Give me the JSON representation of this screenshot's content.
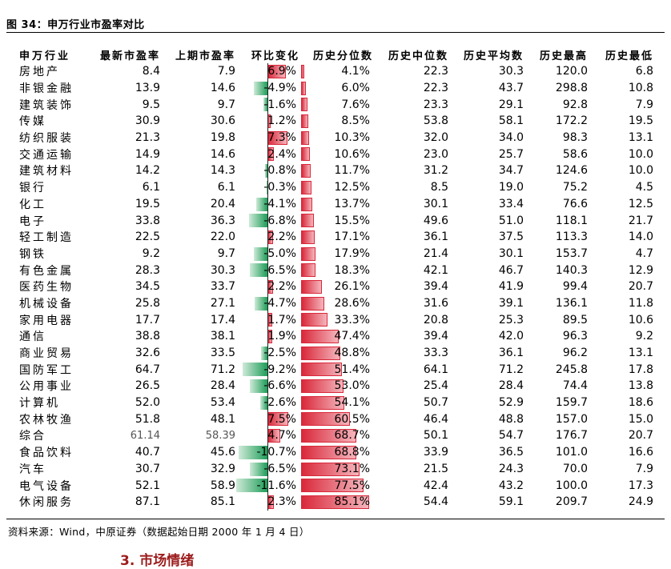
{
  "figure": {
    "title": "图 34：申万行业市盈率对比",
    "source": "资料来源：Wind，中原证券（数据起始日期 2000 年 1 月 4 日）",
    "next_heading": "3. 市场情绪"
  },
  "colors": {
    "positive": "#d9283a",
    "negative": "#1e9c58"
  },
  "table": {
    "headers": [
      "申万行业",
      "最新市盈率",
      "上期市盈率",
      "环比变化",
      "历史分位数",
      "历史中位数",
      "历史平均数",
      "历史最高",
      "历史最低"
    ],
    "rows": [
      {
        "name": "房地产",
        "latest": "8.4",
        "prev": "7.9",
        "change": "6.9%",
        "change_value": 6.9,
        "pct": "4.1%",
        "pct_value": 4.1,
        "median": "22.3",
        "mean": "30.3",
        "high": "120.0",
        "low": "6.8"
      },
      {
        "name": "非银金融",
        "latest": "13.9",
        "prev": "14.6",
        "change": "-4.9%",
        "change_value": -4.9,
        "pct": "6.0%",
        "pct_value": 6.0,
        "median": "22.3",
        "mean": "43.7",
        "high": "298.8",
        "low": "10.8"
      },
      {
        "name": "建筑装饰",
        "latest": "9.5",
        "prev": "9.7",
        "change": "-1.6%",
        "change_value": -1.6,
        "pct": "7.6%",
        "pct_value": 7.6,
        "median": "23.3",
        "mean": "29.1",
        "high": "92.8",
        "low": "7.9"
      },
      {
        "name": "传媒",
        "latest": "30.9",
        "prev": "30.6",
        "change": "1.2%",
        "change_value": 1.2,
        "pct": "8.5%",
        "pct_value": 8.5,
        "median": "53.8",
        "mean": "58.1",
        "high": "172.2",
        "low": "19.5"
      },
      {
        "name": "纺织服装",
        "latest": "21.3",
        "prev": "19.8",
        "change": "7.3%",
        "change_value": 7.3,
        "pct": "10.3%",
        "pct_value": 10.3,
        "median": "32.0",
        "mean": "34.0",
        "high": "98.3",
        "low": "13.1"
      },
      {
        "name": "交通运输",
        "latest": "14.9",
        "prev": "14.6",
        "change": "2.4%",
        "change_value": 2.4,
        "pct": "10.6%",
        "pct_value": 10.6,
        "median": "23.0",
        "mean": "25.7",
        "high": "58.6",
        "low": "10.0"
      },
      {
        "name": "建筑材料",
        "latest": "14.2",
        "prev": "14.3",
        "change": "-0.8%",
        "change_value": -0.8,
        "pct": "11.7%",
        "pct_value": 11.7,
        "median": "31.2",
        "mean": "34.7",
        "high": "124.6",
        "low": "10.0"
      },
      {
        "name": "银行",
        "latest": "6.1",
        "prev": "6.1",
        "change": "-0.3%",
        "change_value": -0.3,
        "pct": "12.5%",
        "pct_value": 12.5,
        "median": "8.5",
        "mean": "19.0",
        "high": "75.2",
        "low": "4.5"
      },
      {
        "name": "化工",
        "latest": "19.5",
        "prev": "20.4",
        "change": "-4.1%",
        "change_value": -4.1,
        "pct": "13.7%",
        "pct_value": 13.7,
        "median": "30.1",
        "mean": "33.4",
        "high": "76.6",
        "low": "12.5"
      },
      {
        "name": "电子",
        "latest": "33.8",
        "prev": "36.3",
        "change": "-6.8%",
        "change_value": -6.8,
        "pct": "15.5%",
        "pct_value": 15.5,
        "median": "49.6",
        "mean": "51.0",
        "high": "118.1",
        "low": "21.7"
      },
      {
        "name": "轻工制造",
        "latest": "22.5",
        "prev": "22.0",
        "change": "2.2%",
        "change_value": 2.2,
        "pct": "17.1%",
        "pct_value": 17.1,
        "median": "36.1",
        "mean": "37.5",
        "high": "113.3",
        "low": "14.0"
      },
      {
        "name": "钢铁",
        "latest": "9.2",
        "prev": "9.7",
        "change": "-5.0%",
        "change_value": -5.0,
        "pct": "17.9%",
        "pct_value": 17.9,
        "median": "21.4",
        "mean": "30.1",
        "high": "153.7",
        "low": "4.7"
      },
      {
        "name": "有色金属",
        "latest": "28.3",
        "prev": "30.3",
        "change": "-6.5%",
        "change_value": -6.5,
        "pct": "18.3%",
        "pct_value": 18.3,
        "median": "42.1",
        "mean": "46.7",
        "high": "140.3",
        "low": "12.9"
      },
      {
        "name": "医药生物",
        "latest": "34.5",
        "prev": "33.7",
        "change": "2.2%",
        "change_value": 2.2,
        "pct": "26.1%",
        "pct_value": 26.1,
        "median": "39.4",
        "mean": "41.9",
        "high": "99.4",
        "low": "20.7"
      },
      {
        "name": "机械设备",
        "latest": "25.8",
        "prev": "27.1",
        "change": "-4.7%",
        "change_value": -4.7,
        "pct": "28.6%",
        "pct_value": 28.6,
        "median": "31.6",
        "mean": "39.1",
        "high": "136.1",
        "low": "11.8"
      },
      {
        "name": "家用电器",
        "latest": "17.7",
        "prev": "17.4",
        "change": "1.7%",
        "change_value": 1.7,
        "pct": "33.3%",
        "pct_value": 33.3,
        "median": "20.8",
        "mean": "25.3",
        "high": "89.5",
        "low": "10.6"
      },
      {
        "name": "通信",
        "latest": "38.8",
        "prev": "38.1",
        "change": "1.9%",
        "change_value": 1.9,
        "pct": "47.4%",
        "pct_value": 47.4,
        "median": "39.4",
        "mean": "42.0",
        "high": "96.3",
        "low": "9.2"
      },
      {
        "name": "商业贸易",
        "latest": "32.6",
        "prev": "33.5",
        "change": "-2.5%",
        "change_value": -2.5,
        "pct": "48.8%",
        "pct_value": 48.8,
        "median": "33.3",
        "mean": "36.1",
        "high": "96.2",
        "low": "13.1"
      },
      {
        "name": "国防军工",
        "latest": "64.7",
        "prev": "71.2",
        "change": "-9.2%",
        "change_value": -9.2,
        "pct": "51.4%",
        "pct_value": 51.4,
        "median": "64.1",
        "mean": "71.2",
        "high": "245.8",
        "low": "17.8"
      },
      {
        "name": "公用事业",
        "latest": "26.5",
        "prev": "28.4",
        "change": "-6.6%",
        "change_value": -6.6,
        "pct": "53.0%",
        "pct_value": 53.0,
        "median": "25.4",
        "mean": "28.4",
        "high": "74.4",
        "low": "13.8"
      },
      {
        "name": "计算机",
        "latest": "52.0",
        "prev": "53.4",
        "change": "-2.6%",
        "change_value": -2.6,
        "pct": "54.1%",
        "pct_value": 54.1,
        "median": "50.7",
        "mean": "52.9",
        "high": "159.7",
        "low": "18.6"
      },
      {
        "name": "农林牧渔",
        "latest": "51.8",
        "prev": "48.1",
        "change": "7.5%",
        "change_value": 7.5,
        "pct": "60.5%",
        "pct_value": 60.5,
        "median": "46.4",
        "mean": "48.8",
        "high": "157.0",
        "low": "15.0"
      },
      {
        "name": "综合",
        "latest": "61.14",
        "prev": "58.39",
        "change": "4.7%",
        "change_value": 4.7,
        "pct": "68.7%",
        "pct_value": 68.7,
        "median": "50.1",
        "mean": "54.7",
        "high": "176.7",
        "low": "20.7",
        "gray": true
      },
      {
        "name": "食品饮料",
        "latest": "40.7",
        "prev": "45.6",
        "change": "-10.7%",
        "change_value": -10.7,
        "pct": "68.8%",
        "pct_value": 68.8,
        "median": "33.9",
        "mean": "36.5",
        "high": "101.0",
        "low": "16.6"
      },
      {
        "name": "汽车",
        "latest": "30.7",
        "prev": "32.9",
        "change": "-6.5%",
        "change_value": -6.5,
        "pct": "73.1%",
        "pct_value": 73.1,
        "median": "21.5",
        "mean": "24.3",
        "high": "70.0",
        "low": "7.9"
      },
      {
        "name": "电气设备",
        "latest": "52.1",
        "prev": "58.9",
        "change": "-11.6%",
        "change_value": -11.6,
        "pct": "77.5%",
        "pct_value": 77.5,
        "median": "42.4",
        "mean": "43.2",
        "high": "100.0",
        "low": "17.3"
      },
      {
        "name": "休闲服务",
        "latest": "87.1",
        "prev": "85.1",
        "change": "2.3%",
        "change_value": 2.3,
        "pct": "85.1%",
        "pct_value": 85.1,
        "median": "54.4",
        "mean": "59.1",
        "high": "209.7",
        "low": "24.9"
      }
    ]
  }
}
